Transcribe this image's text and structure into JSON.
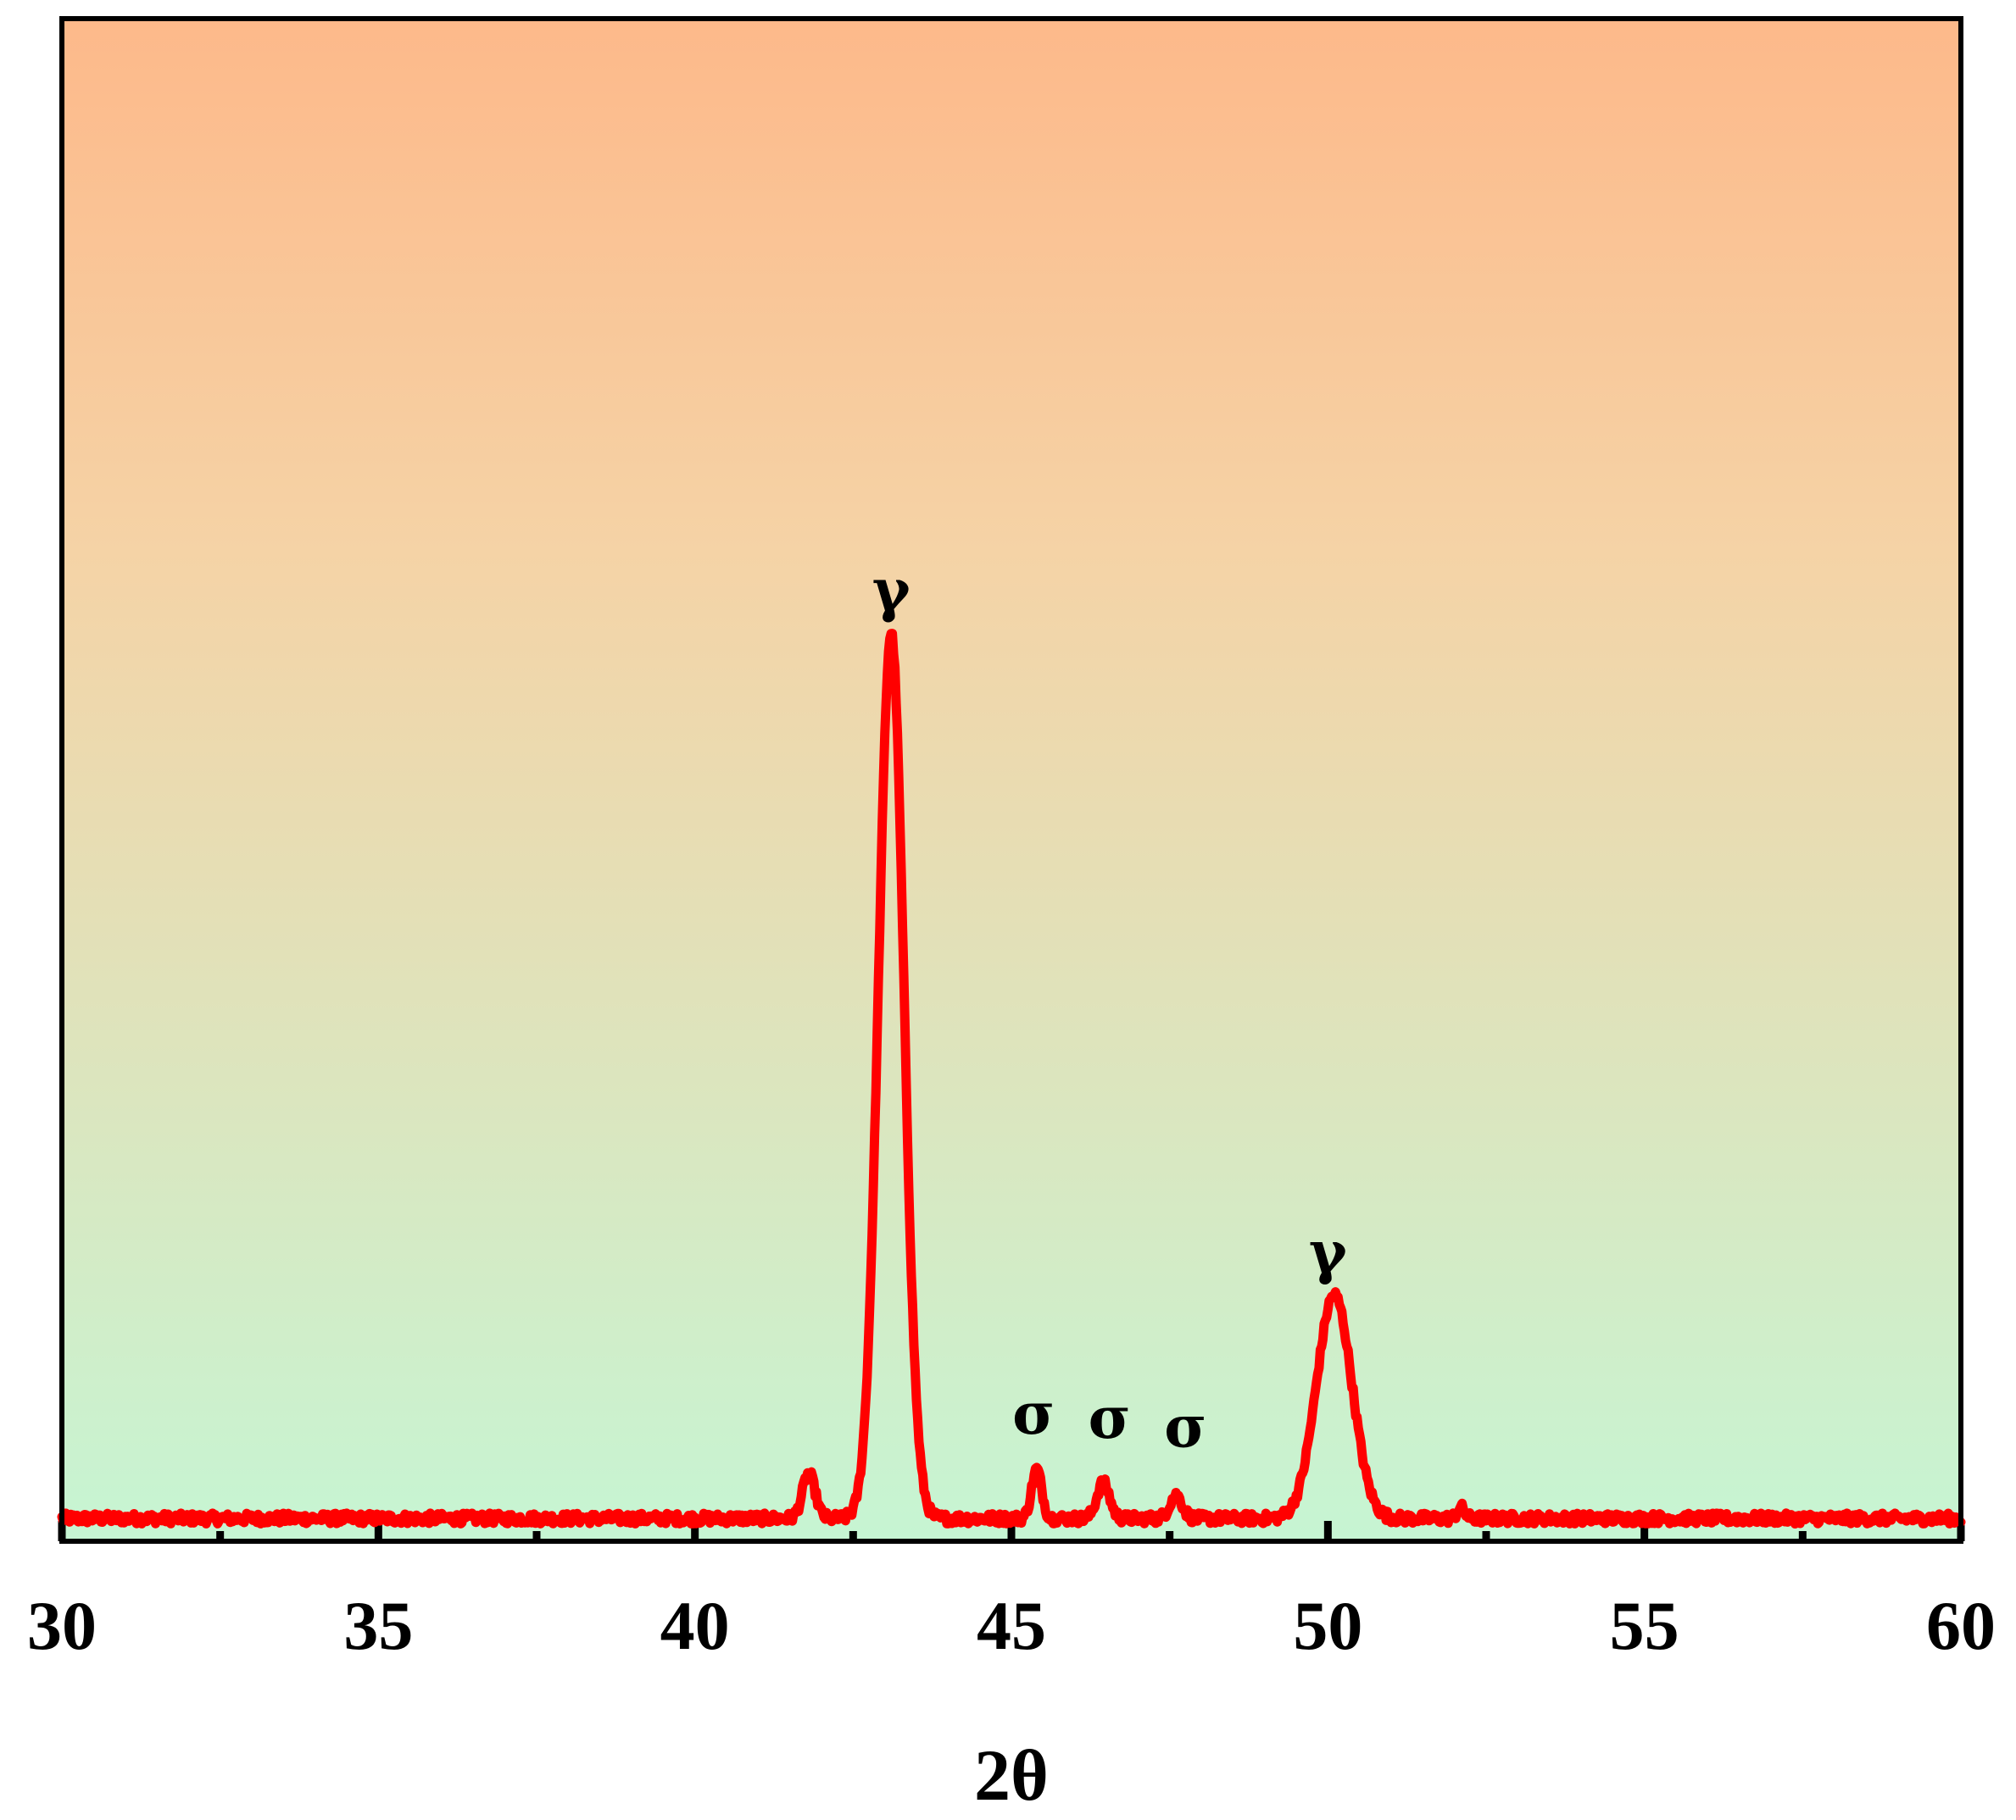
{
  "chart_data": {
    "type": "line",
    "title": "",
    "xlabel": "2θ",
    "ylabel": "",
    "xlim": [
      30,
      60
    ],
    "ylim": [
      0,
      100
    ],
    "x_ticks": [
      "30",
      "35",
      "40",
      "45",
      "50",
      "55",
      "60"
    ],
    "x_minor_ticks": [
      32.5,
      37.5,
      42.5,
      47.5,
      52.5,
      57.5
    ],
    "y_ticks": [],
    "grid": false,
    "legend": "none",
    "colors": {
      "line": "#ff0000",
      "background_top": "#fdb98a",
      "background_mid": "#f5d3a6",
      "background_bottom": "#c6f5d3",
      "frame": "#000000"
    },
    "series": [
      {
        "baseline": 1.5,
        "noise": 0.6,
        "peaks": [
          {
            "x": 41.8,
            "height": 5.0,
            "width": 0.1
          },
          {
            "x": 43.1,
            "height": 99.0,
            "width": 0.2
          },
          {
            "x": 45.4,
            "height": 5.5,
            "width": 0.08
          },
          {
            "x": 46.45,
            "height": 4.0,
            "width": 0.1
          },
          {
            "x": 47.6,
            "height": 2.6,
            "width": 0.1
          },
          {
            "x": 50.1,
            "height": 25.0,
            "width": 0.28
          },
          {
            "x": 52.1,
            "height": 1.2,
            "width": 0.06
          }
        ]
      }
    ],
    "annotations": [
      {
        "text": "γ",
        "x": 43.1,
        "y": 103
      },
      {
        "text": "σ",
        "x": 45.35,
        "y": 11
      },
      {
        "text": "σ",
        "x": 46.55,
        "y": 10.5
      },
      {
        "text": "σ",
        "x": 47.75,
        "y": 9.5
      },
      {
        "text": "γ",
        "x": 50.0,
        "y": 29
      }
    ]
  }
}
